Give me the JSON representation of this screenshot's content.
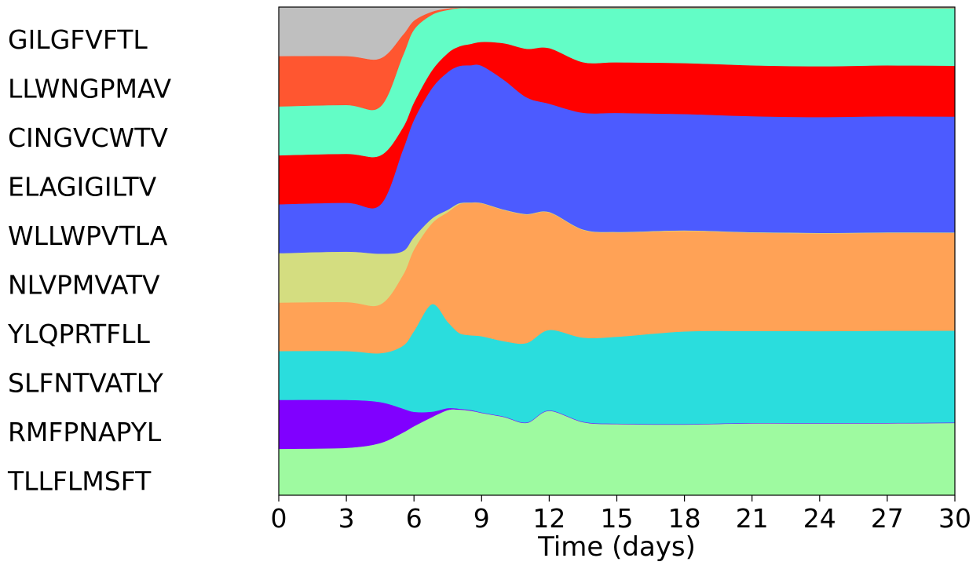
{
  "chart_data": {
    "type": "area",
    "stacked": true,
    "normalized": true,
    "title": "",
    "xlabel": "Time (days)",
    "ylabel": "",
    "xlim": [
      0,
      30
    ],
    "ylim": [
      0,
      1
    ],
    "xticks": [
      0,
      3,
      6,
      9,
      12,
      15,
      18,
      21,
      24,
      27,
      30
    ],
    "grid": false,
    "legend": "left",
    "x": [
      0,
      3,
      4.5,
      5.5,
      6,
      6.8,
      7.5,
      8,
      8.5,
      9,
      10,
      11,
      12,
      13.5,
      15,
      18,
      21,
      24,
      27,
      30
    ],
    "series": [
      {
        "name": "TLLFLMSFT",
        "color": "#9efaa0",
        "values": [
          0.095,
          0.097,
          0.107,
          0.135,
          0.154,
          0.176,
          0.184,
          0.183,
          0.179,
          0.173,
          0.16,
          0.146,
          0.173,
          0.146,
          0.142,
          0.143,
          0.147,
          0.147,
          0.147,
          0.148
        ]
      },
      {
        "name": "RMFPNAPYL",
        "color": "#8000ff",
        "values": [
          0.1,
          0.098,
          0.084,
          0.052,
          0.032,
          0.012,
          0.004,
          0.002,
          0.0015,
          0.001,
          0.001,
          0.001,
          0.001,
          0.001,
          0.001,
          0.001,
          0.001,
          0.001,
          0.001,
          0.001
        ]
      },
      {
        "name": "SLFNTVATLY",
        "color": "#2adddd",
        "values": [
          0.1,
          0.1,
          0.1,
          0.135,
          0.18,
          0.242,
          0.186,
          0.162,
          0.158,
          0.16,
          0.154,
          0.16,
          0.165,
          0.168,
          0.173,
          0.187,
          0.188,
          0.188,
          0.188,
          0.188
        ]
      },
      {
        "name": "YLQPRTFLL",
        "color": "#ffa256",
        "values": [
          0.099,
          0.1,
          0.1,
          0.152,
          0.182,
          0.182,
          0.237,
          0.275,
          0.28,
          0.279,
          0.268,
          0.259,
          0.241,
          0.215,
          0.208,
          0.203,
          0.201,
          0.2,
          0.2,
          0.2
        ]
      },
      {
        "name": "NLVPMVATV",
        "color": "#d4dd80",
        "values": [
          0.101,
          0.103,
          0.104,
          0.052,
          0.028,
          0.011,
          0.005,
          0.002,
          0.001,
          0.001,
          0.001,
          0.001,
          0.001,
          0.001,
          0.001,
          0.001,
          0.001,
          0.001,
          0.001,
          0.001
        ]
      },
      {
        "name": "WLLWPVTLA",
        "color": "#4c5bff",
        "values": [
          0.1,
          0.1,
          0.1,
          0.218,
          0.261,
          0.293,
          0.297,
          0.293,
          0.29,
          0.288,
          0.265,
          0.235,
          0.222,
          0.233,
          0.237,
          0.235,
          0.237,
          0.237,
          0.237,
          0.237
        ]
      },
      {
        "name": "ELAGIGILTV",
        "color": "#ff0000",
        "values": [
          0.1,
          0.1,
          0.101,
          0.048,
          0.039,
          0.04,
          0.041,
          0.042,
          0.045,
          0.05,
          0.075,
          0.098,
          0.114,
          0.101,
          0.101,
          0.103,
          0.104,
          0.104,
          0.104,
          0.104
        ]
      },
      {
        "name": "CINGVCWTV",
        "color": "#63fdc6",
        "values": [
          0.1,
          0.1,
          0.1,
          0.155,
          0.162,
          0.125,
          0.093,
          0.082,
          0.076,
          0.071,
          0.072,
          0.082,
          0.082,
          0.108,
          0.108,
          0.111,
          0.117,
          0.119,
          0.117,
          0.118
        ]
      },
      {
        "name": "LLWNGPMAV",
        "color": "#ff5630",
        "values": [
          0.103,
          0.1,
          0.099,
          0.045,
          0.02,
          0.007,
          0.003,
          0.001,
          0.001,
          0.001,
          0.001,
          0.001,
          0.001,
          0.001,
          0.001,
          0.001,
          0.001,
          0.001,
          0.001,
          0.001
        ]
      },
      {
        "name": "GILGFVFTL",
        "color": "#bfbfbf",
        "values": [
          0.1,
          0.1,
          0.105,
          0.06,
          0.03,
          0.01,
          0.003,
          0.001,
          0.001,
          0.001,
          0.001,
          0.001,
          0.001,
          0.001,
          0.001,
          0.001,
          0.001,
          0.001,
          0.001,
          0.001
        ]
      }
    ]
  }
}
